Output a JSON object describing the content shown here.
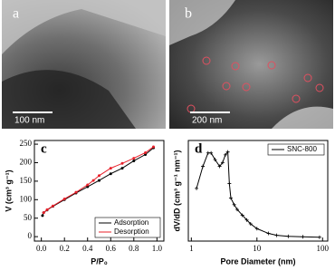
{
  "panels": [
    {
      "label": "a",
      "scale_bar": "100 nm"
    },
    {
      "label": "b",
      "scale_bar": "200 nm"
    }
  ],
  "chart_data": [
    {
      "type": "line",
      "panel_label": "c",
      "x_label": "P/P₀",
      "y_label": "V (cm³ g⁻¹)",
      "xlim": [
        -0.06,
        1.06
      ],
      "ylim": [
        -12,
        260
      ],
      "xticks": [
        {
          "value": 0,
          "label": "0.0"
        },
        0.2,
        0.4,
        0.6,
        0.8,
        {
          "value": 1,
          "label": "1.0"
        }
      ],
      "yticks": [
        0,
        50,
        100,
        150,
        200,
        250
      ],
      "legend": "lower right",
      "series": [
        {
          "name": "Adsorption",
          "color": "#000000",
          "x": [
            0.01,
            0.02,
            0.05,
            0.1,
            0.2,
            0.3,
            0.4,
            0.5,
            0.6,
            0.7,
            0.8,
            0.9,
            0.97
          ],
          "values": [
            57,
            65,
            72,
            82,
            100,
            118,
            135,
            152,
            170,
            185,
            205,
            222,
            240
          ]
        },
        {
          "name": "Desorption",
          "color": "#e8202a",
          "x": [
            0.97,
            0.9,
            0.8,
            0.7,
            0.6,
            0.5,
            0.45,
            0.4,
            0.3,
            0.2,
            0.1,
            0.05,
            0.02
          ],
          "values": [
            243,
            227,
            212,
            198,
            185,
            165,
            152,
            140,
            120,
            102,
            83,
            73,
            65
          ]
        }
      ]
    },
    {
      "type": "line",
      "panel_label": "d",
      "x_label": "Pore Diameter (nm)",
      "y_label": "dV/dD (cm³ g⁻¹ nm⁻¹)",
      "xlim": [
        0.9,
        120
      ],
      "ylim": [
        0,
        1.05
      ],
      "log_x": true,
      "xticks": [
        1,
        10,
        100
      ],
      "yticks": [],
      "legend": "upper right",
      "series": [
        {
          "name": "SNC-800",
          "color": "#000000",
          "x": [
            1.2,
            1.5,
            1.8,
            2.0,
            2.3,
            2.7,
            3.0,
            3.3,
            3.6,
            3.8,
            4,
            4.5,
            5,
            6,
            7,
            8,
            10,
            15,
            20,
            30,
            50,
            90
          ],
          "values": [
            0.55,
            0.78,
            0.92,
            0.92,
            0.85,
            0.78,
            0.82,
            0.9,
            0.93,
            0.6,
            0.45,
            0.38,
            0.33,
            0.27,
            0.22,
            0.18,
            0.13,
            0.08,
            0.06,
            0.05,
            0.045,
            0.04
          ]
        }
      ]
    }
  ]
}
